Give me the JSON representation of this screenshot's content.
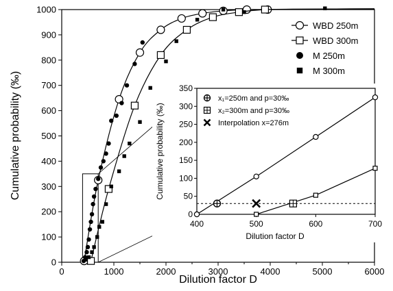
{
  "chart_data": [
    {
      "type": "scatter",
      "title": "",
      "xlabel": "Dilution factor D",
      "ylabel": "Cumulative probability (‰)",
      "xlim": [
        0,
        6000
      ],
      "ylim": [
        0,
        1000
      ],
      "x_ticks": [
        "0",
        "1000",
        "2000",
        "3000",
        "4000",
        "5000",
        "6000"
      ],
      "y_ticks": [
        "0",
        "100",
        "200",
        "300",
        "400",
        "500",
        "600",
        "700",
        "800",
        "900",
        "1000"
      ],
      "legend_placement": "top-right",
      "grid": false,
      "series": [
        {
          "name": "WBD 250m",
          "marker": "open-circle",
          "line": true,
          "x": [
            430,
            700,
            1100,
            1500,
            1900,
            2300,
            2700,
            3100,
            3550,
            3950
          ],
          "y": [
            5,
            325,
            645,
            830,
            920,
            965,
            985,
            995,
            1000,
            1000
          ]
        },
        {
          "name": "WBD 300m",
          "marker": "open-square",
          "line": true,
          "x": [
            560,
            900,
            1400,
            1900,
            2400,
            2900,
            3400,
            3900
          ],
          "y": [
            5,
            290,
            620,
            820,
            920,
            970,
            990,
            1000
          ]
        },
        {
          "name": "M 250m",
          "marker": "filled-circle",
          "line": false,
          "x": [
            420,
            450,
            480,
            500,
            520,
            540,
            560,
            580,
            600,
            620,
            650,
            700,
            750,
            800,
            850,
            900,
            950,
            1050,
            1150,
            1250,
            1400,
            1550
          ],
          "y": [
            5,
            20,
            40,
            60,
            90,
            130,
            160,
            190,
            230,
            260,
            290,
            330,
            375,
            400,
            430,
            470,
            560,
            580,
            630,
            700,
            785,
            870
          ]
        },
        {
          "name": "M 300m",
          "marker": "filled-square",
          "line": false,
          "x": [
            460,
            520,
            580,
            620,
            680,
            720,
            780,
            850,
            950,
            1100,
            1200,
            1300,
            1500,
            1700,
            2000,
            2200,
            2600,
            3100,
            3500,
            5050
          ],
          "y": [
            10,
            20,
            40,
            60,
            100,
            140,
            160,
            230,
            300,
            360,
            420,
            470,
            555,
            690,
            795,
            875,
            960,
            1000,
            990,
            1005
          ]
        }
      ],
      "inset_box": {
        "x": [
          400,
          700
        ],
        "y": [
          0,
          350
        ]
      }
    },
    {
      "type": "line",
      "title": "",
      "xlabel": "Dilution factor D",
      "ylabel": "Cumulative probability (‰)",
      "xlim": [
        400,
        700
      ],
      "ylim": [
        0,
        350
      ],
      "x_ticks": [
        "400",
        "500",
        "600",
        "700"
      ],
      "y_ticks": [
        "0",
        "50",
        "100",
        "150",
        "200",
        "250",
        "300",
        "350"
      ],
      "grid": false,
      "series": [
        {
          "name": "",
          "marker": "open-circle",
          "line": true,
          "x": [
            400,
            500,
            600,
            700
          ],
          "y": [
            0,
            105,
            215,
            325
          ]
        },
        {
          "name": "",
          "marker": "open-square",
          "line": true,
          "x": [
            500,
            600,
            700
          ],
          "y": [
            0,
            53,
            128
          ]
        }
      ],
      "annotations": [
        {
          "label": "x₁=250m and p=30‰",
          "marker": "circle-plus",
          "x": 434,
          "y": 30
        },
        {
          "label": "x₂=300m and p=30‰",
          "marker": "square-plus",
          "x": 562,
          "y": 30
        },
        {
          "label": "Interpolation x=276m",
          "marker": "cross",
          "x": 500,
          "y": 30
        }
      ],
      "reference_line": {
        "y": 30,
        "style": "dashed"
      }
    }
  ]
}
